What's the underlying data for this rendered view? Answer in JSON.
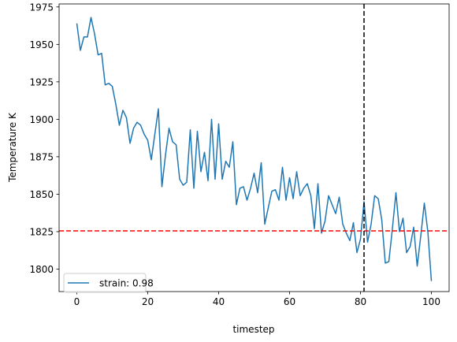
{
  "chart_data": {
    "type": "line",
    "xlabel": "timestep",
    "ylabel": "Temperature K",
    "xlim": [
      -5,
      105
    ],
    "ylim": [
      1785,
      1977
    ],
    "xticks": [
      0,
      20,
      40,
      60,
      80,
      100
    ],
    "yticks": [
      1800,
      1825,
      1850,
      1875,
      1900,
      1925,
      1950,
      1975
    ],
    "legend_position": "lower-left",
    "series": [
      {
        "name": "strain: 0.98",
        "color": "#1f77b4",
        "x": [
          0,
          1,
          2,
          3,
          4,
          5,
          6,
          7,
          8,
          9,
          10,
          11,
          12,
          13,
          14,
          15,
          16,
          17,
          18,
          19,
          20,
          21,
          22,
          23,
          24,
          25,
          26,
          27,
          28,
          29,
          30,
          31,
          32,
          33,
          34,
          35,
          36,
          37,
          38,
          39,
          40,
          41,
          42,
          43,
          44,
          45,
          46,
          47,
          48,
          49,
          50,
          51,
          52,
          53,
          54,
          55,
          56,
          57,
          58,
          59,
          60,
          61,
          62,
          63,
          64,
          65,
          66,
          67,
          68,
          69,
          70,
          71,
          72,
          73,
          74,
          75,
          76,
          77,
          78,
          79,
          80,
          81,
          82,
          83,
          84,
          85,
          86,
          87,
          88,
          89,
          90,
          91,
          92,
          93,
          94,
          95,
          96,
          97,
          98,
          99,
          100
        ],
        "y": [
          1964,
          1946,
          1955,
          1955,
          1968,
          1957,
          1943,
          1944,
          1923,
          1924,
          1922,
          1910,
          1896,
          1906,
          1901,
          1884,
          1894,
          1898,
          1896,
          1890,
          1886,
          1873,
          1890,
          1907,
          1855,
          1876,
          1894,
          1885,
          1883,
          1860,
          1856,
          1858,
          1893,
          1854,
          1892,
          1865,
          1878,
          1859,
          1900,
          1860,
          1897,
          1860,
          1872,
          1868,
          1885,
          1843,
          1854,
          1855,
          1846,
          1854,
          1864,
          1851,
          1871,
          1830,
          1841,
          1852,
          1853,
          1846,
          1868,
          1846,
          1861,
          1847,
          1865,
          1849,
          1854,
          1857,
          1849,
          1827,
          1857,
          1824,
          1832,
          1849,
          1843,
          1837,
          1848,
          1830,
          1824,
          1819,
          1831,
          1811,
          1820,
          1845,
          1818,
          1830,
          1849,
          1847,
          1833,
          1804,
          1805,
          1827,
          1851,
          1825,
          1834,
          1811,
          1815,
          1828,
          1802,
          1822,
          1844,
          1825,
          1792
        ]
      }
    ],
    "hline": {
      "y": 1825.5,
      "color": "#ff0000",
      "style": "dashed"
    },
    "vline": {
      "x": 81,
      "color": "#000000",
      "style": "dashed"
    }
  }
}
